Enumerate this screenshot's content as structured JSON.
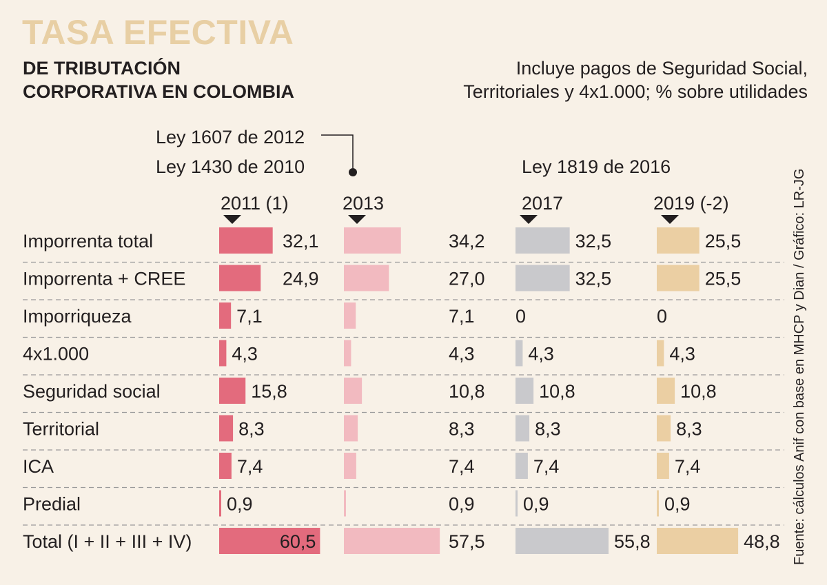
{
  "header": {
    "title": "TASA EFECTIVA",
    "subtitle_line1": "DE TRIBUTACIÓN",
    "subtitle_line2": "CORPORATIVA EN COLOMBIA",
    "note_line1": "Incluye pagos de Seguridad Social,",
    "note_line2": "Territoriales y 4x1.000; % sobre utilidades"
  },
  "laws": {
    "law_2012": "Ley 1607 de 2012",
    "law_2010": "Ley 1430 de 2010",
    "law_2016": "Ley 1819 de 2016"
  },
  "source": "Fuente: cálculos Anif con base en MHCP y Dian / Gráfico: LR-JG",
  "colors": {
    "c2011": "#e36b7d",
    "c2013": "#f2bac0",
    "c2017": "#c9c9cc",
    "c2019": "#ebcfa3",
    "divider": "#9a9a9a"
  },
  "chart_data": {
    "type": "bar",
    "title": "TASA EFECTIVA DE TRIBUTACIÓN CORPORATIVA EN COLOMBIA",
    "categories": [
      "Imporrenta total",
      "Imporrenta + CREE",
      "Imporriqueza",
      "4x1.000",
      "Seguridad social",
      "Territorial",
      "ICA",
      "Predial",
      "Total (I + II + III + IV)"
    ],
    "series": [
      {
        "name": "2011 (1)",
        "values": [
          32.1,
          24.9,
          7.1,
          4.3,
          15.8,
          8.3,
          7.4,
          0.9,
          60.5
        ],
        "labels": [
          "32,1",
          "24,9",
          "7,1",
          "4,3",
          "15,8",
          "8,3",
          "7,4",
          "0,9",
          "60,5"
        ]
      },
      {
        "name": "2013",
        "values": [
          34.2,
          27.0,
          7.1,
          4.3,
          10.8,
          8.3,
          7.4,
          0.9,
          57.5
        ],
        "labels": [
          "34,2",
          "27,0",
          "7,1",
          "4,3",
          "10,8",
          "8,3",
          "7,4",
          "0,9",
          "57,5"
        ]
      },
      {
        "name": "2017",
        "values": [
          32.5,
          32.5,
          0,
          4.3,
          10.8,
          8.3,
          7.4,
          0.9,
          55.8
        ],
        "labels": [
          "32,5",
          "32,5",
          "0",
          "4,3",
          "10,8",
          "8,3",
          "7,4",
          "0,9",
          "55,8"
        ]
      },
      {
        "name": "2019 (-2)",
        "values": [
          25.5,
          25.5,
          0,
          4.3,
          10.8,
          8.3,
          7.4,
          0.9,
          48.8
        ],
        "labels": [
          "25,5",
          "25,5",
          "0",
          "4,3",
          "10,8",
          "8,3",
          "7,4",
          "0,9",
          "48,8"
        ]
      }
    ]
  }
}
